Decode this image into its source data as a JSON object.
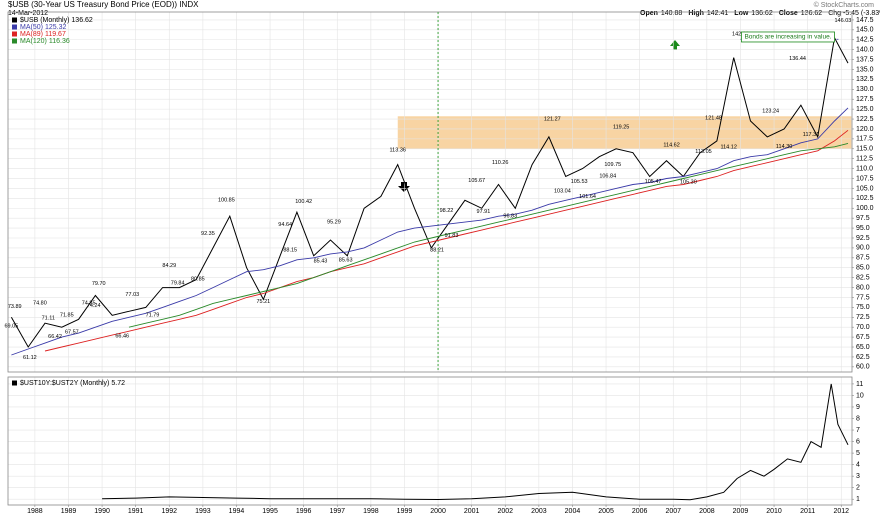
{
  "header": {
    "title": "$USB (30-Year US Treasury Bond Price (EOD)) INDX",
    "date": "14-Mar-2012",
    "credit": "© StockCharts.com",
    "quote": [
      {
        "label": "Open",
        "value": 140.88
      },
      {
        "label": "High",
        "value": 142.41
      },
      {
        "label": "Low",
        "value": 136.62
      },
      {
        "label": "Close",
        "value": 136.62
      }
    ],
    "change": "Chg -5.45 (-3.83%)"
  },
  "chart_data": [
    {
      "type": "line",
      "x": [
        1987.3,
        1987.8,
        1988.3,
        1988.8,
        1989.3,
        1989.8,
        1990.3,
        1990.8,
        1991.3,
        1991.8,
        1992.3,
        1992.8,
        1993.3,
        1993.8,
        1994.3,
        1994.8,
        1995.3,
        1995.8,
        1996.3,
        1996.8,
        1997.3,
        1997.8,
        1998.3,
        1998.8,
        1999.3,
        1999.8,
        2000.3,
        2000.8,
        2001.3,
        2001.8,
        2002.3,
        2002.8,
        2003.3,
        2003.8,
        2004.3,
        2004.8,
        2005.3,
        2005.8,
        2006.3,
        2006.8,
        2007.3,
        2007.8,
        2008.3,
        2008.8,
        2009.3,
        2009.8,
        2010.3,
        2010.8,
        2011.3,
        2011.8,
        2012.2
      ],
      "series": [
        {
          "name": "$USB (Monthly)",
          "color": "#000000",
          "values": [
            72.5,
            65,
            71,
            70,
            72,
            78,
            73,
            74,
            75,
            80,
            80,
            82,
            90,
            98,
            85,
            77,
            88,
            99,
            88,
            92,
            88,
            100,
            103,
            111,
            100,
            90,
            96,
            102,
            100,
            106,
            100,
            111,
            118,
            108,
            110,
            113,
            115,
            114,
            108,
            112,
            108,
            114,
            117,
            138,
            122,
            118,
            120,
            126,
            118,
            143,
            136.62
          ]
        },
        {
          "name": "MA(50)",
          "color": "#3a3aa8",
          "values": [
            63,
            64.5,
            66,
            67.5,
            68.5,
            70,
            71.5,
            72.5,
            73.5,
            75,
            76.5,
            78,
            80,
            82,
            84,
            84.5,
            85.5,
            87,
            87.5,
            88.5,
            89,
            90,
            92,
            94,
            95,
            95.5,
            96,
            96.5,
            97,
            98,
            98.5,
            99.5,
            101,
            102,
            103,
            104,
            105,
            106,
            106.5,
            107.5,
            108,
            109,
            110,
            112,
            113,
            113.5,
            115,
            116.5,
            117.5,
            122,
            125.32
          ]
        },
        {
          "name": "MA(89)",
          "color": "#dd2222",
          "values": [
            null,
            null,
            64,
            65,
            66,
            67,
            68,
            69,
            70,
            71,
            72,
            73,
            74.5,
            76,
            77.5,
            78.5,
            80,
            81.5,
            82.5,
            84,
            85,
            86,
            87.5,
            89,
            90.5,
            91.5,
            92.5,
            93.5,
            94.5,
            95.5,
            96.5,
            97.5,
            98.5,
            99.5,
            100.5,
            101.5,
            102.5,
            103.5,
            104.5,
            105.5,
            106,
            107,
            108,
            109.5,
            110.5,
            111.5,
            112.5,
            113.5,
            114.5,
            117,
            119.67
          ]
        },
        {
          "name": "MA(120)",
          "color": "#2a8a2a",
          "values": [
            null,
            null,
            null,
            null,
            null,
            null,
            null,
            70,
            71,
            72,
            73,
            74.5,
            76,
            77,
            78,
            79,
            80,
            81,
            82.5,
            84,
            85.5,
            87,
            88.5,
            90,
            91.5,
            92.5,
            93.5,
            94.5,
            95.5,
            96.5,
            97.5,
            98.5,
            99.5,
            100.5,
            101.5,
            102.5,
            103.5,
            104.5,
            105.5,
            106.5,
            107.5,
            108.5,
            109.5,
            110.5,
            111.5,
            112.5,
            113.5,
            114.5,
            115,
            115.5,
            116.36
          ]
        }
      ],
      "xlim": [
        1987.2,
        2012.32
      ],
      "ylim": [
        58.7,
        149.5
      ],
      "grid": true,
      "yticks": [
        147.5,
        {
          "value": 145,
          "label": "145.0"
        },
        142.5,
        {
          "value": 140,
          "label": "140.0"
        },
        137.5,
        {
          "value": 135,
          "label": "135.0"
        },
        132.5,
        {
          "value": 130,
          "label": "130.0"
        },
        127.5,
        {
          "value": 125,
          "label": "125.0"
        },
        122.5,
        {
          "value": 120,
          "label": "120.0"
        },
        117.5,
        {
          "value": 115,
          "label": "115.0"
        },
        112.5,
        {
          "value": 110,
          "label": "110.0"
        },
        107.5,
        {
          "value": 105,
          "label": "105.0"
        },
        102.5,
        {
          "value": 100,
          "label": "100.0"
        },
        97.5,
        {
          "value": 95,
          "label": "95.0"
        },
        92.5,
        {
          "value": 90,
          "label": "90.0"
        },
        87.5,
        {
          "value": 85,
          "label": "85.0"
        },
        82.5,
        {
          "value": 80,
          "label": "80.0"
        },
        77.5,
        {
          "value": 75,
          "label": "75.0"
        },
        72.5,
        {
          "value": 70,
          "label": "70.0"
        },
        67.5,
        {
          "value": 65,
          "label": "65.0"
        },
        62.5,
        {
          "value": 60,
          "label": "60.0"
        }
      ],
      "band": {
        "x": [
          1998.8,
          2012.3
        ],
        "y": [
          115,
          123.2
        ],
        "color": "#f6c98c"
      },
      "vline": 2000,
      "hline": {
        "value": 142.62,
        "x": [
          2009.0,
          2011.95
        ]
      },
      "note": {
        "text": "Bonds are increasing in value.",
        "x": 2009.0,
        "y": 143.2
      },
      "annotations": [
        {
          "x": 1987.4,
          "value": 73.89
        },
        {
          "x": 1987.3,
          "value": 69.05
        },
        {
          "x": 1987.85,
          "value": 61.12
        },
        {
          "x": 1988.15,
          "value": 74.8,
          "label": "74.80"
        },
        {
          "x": 1988.4,
          "value": 71.11
        },
        {
          "x": 1988.6,
          "value": 66.42
        },
        {
          "x": 1988.95,
          "value": 71.85
        },
        {
          "x": 1989.1,
          "value": 67.57
        },
        {
          "x": 1989.9,
          "value": 79.7,
          "label": "79.70"
        },
        {
          "x": 1989.6,
          "value": 74.85
        },
        {
          "x": 1989.75,
          "value": 74.24
        },
        {
          "x": 1990.6,
          "value": 66.46
        },
        {
          "x": 1990.9,
          "value": 77.03
        },
        {
          "x": 1991.5,
          "value": 71.79
        },
        {
          "x": 1992.0,
          "value": 84.29
        },
        {
          "x": 1992.25,
          "value": 79.84
        },
        {
          "x": 1993.15,
          "value": 92.35
        },
        {
          "x": 1992.85,
          "value": 80.85
        },
        {
          "x": 1993.7,
          "value": 100.85
        },
        {
          "x": 1994.8,
          "value": 75.21
        },
        {
          "x": 1995.6,
          "value": 88.15
        },
        {
          "x": 1995.45,
          "value": 94.64
        },
        {
          "x": 1996.0,
          "value": 100.42
        },
        {
          "x": 1996.5,
          "value": 85.43
        },
        {
          "x": 1996.9,
          "value": 95.29
        },
        {
          "x": 1997.25,
          "value": 85.63
        },
        {
          "x": 1998.8,
          "value": 113.36
        },
        {
          "x": 2000.25,
          "value": 98.22
        },
        {
          "x": 2000.4,
          "value": 91.83
        },
        {
          "x": 1999.97,
          "value": 88.21
        },
        {
          "x": 2001.15,
          "value": 105.67
        },
        {
          "x": 2001.35,
          "value": 97.91
        },
        {
          "x": 2001.85,
          "value": 110.26
        },
        {
          "x": 2002.15,
          "value": 96.83
        },
        {
          "x": 2003.4,
          "value": 121.27
        },
        {
          "x": 2003.7,
          "value": 103.04
        },
        {
          "x": 2004.2,
          "value": 105.53
        },
        {
          "x": 2004.45,
          "value": 101.64
        },
        {
          "x": 2005.05,
          "value": 106.84
        },
        {
          "x": 2005.45,
          "value": 119.25
        },
        {
          "x": 2005.2,
          "value": 109.75
        },
        {
          "x": 2006.4,
          "value": 105.47
        },
        {
          "x": 2006.95,
          "value": 114.62
        },
        {
          "x": 2007.45,
          "value": 105.3,
          "label": "105.30"
        },
        {
          "x": 2008.2,
          "value": 121.48
        },
        {
          "x": 2007.9,
          "value": 113.05
        },
        {
          "x": 2009.0,
          "value": 142.62
        },
        {
          "x": 2008.65,
          "value": 114.12
        },
        {
          "x": 2010.7,
          "value": 136.44
        },
        {
          "x": 2009.9,
          "value": 123.24
        },
        {
          "x": 2010.3,
          "value": 114.3,
          "label": "114.30"
        },
        {
          "x": 2011.1,
          "value": 117.31
        },
        {
          "x": 2012.05,
          "value": 146.03
        }
      ]
    },
    {
      "type": "line",
      "x": [
        1990,
        1991,
        1992,
        1993,
        1994,
        1995,
        1996,
        1997,
        1998,
        1999,
        2000,
        2001,
        2002,
        2003,
        2004,
        2005,
        2006,
        2007,
        2007.5,
        2008,
        2008.5,
        2008.9,
        2009.3,
        2009.7,
        2010,
        2010.4,
        2010.8,
        2011.1,
        2011.4,
        2011.7,
        2011.9,
        2012.2
      ],
      "series": [
        {
          "name": "$UST10Y:$UST2Y (Monthly)",
          "color": "#000000",
          "values": [
            1.05,
            1.1,
            1.2,
            1.15,
            1.1,
            1.05,
            1.05,
            1.05,
            1.05,
            1.0,
            0.98,
            1.05,
            1.2,
            1.5,
            1.6,
            1.2,
            1.0,
            1.0,
            0.95,
            1.2,
            1.6,
            2.8,
            3.5,
            3.0,
            3.6,
            4.5,
            4.2,
            6.0,
            5.5,
            11.0,
            7.5,
            5.72
          ]
        }
      ],
      "xlim": [
        1987.2,
        2012.32
      ],
      "ylim": [
        0.5,
        11.6
      ],
      "grid": true,
      "yticks": [
        1,
        2,
        3,
        4,
        5,
        6,
        7,
        8,
        9,
        10,
        11
      ],
      "xticks": [
        1988,
        1989,
        1990,
        1991,
        1992,
        1993,
        1994,
        1995,
        1996,
        1997,
        1998,
        1999,
        2000,
        2001,
        2002,
        2003,
        2004,
        2005,
        2006,
        2007,
        2008,
        2009,
        2010,
        2011,
        2012
      ]
    }
  ]
}
